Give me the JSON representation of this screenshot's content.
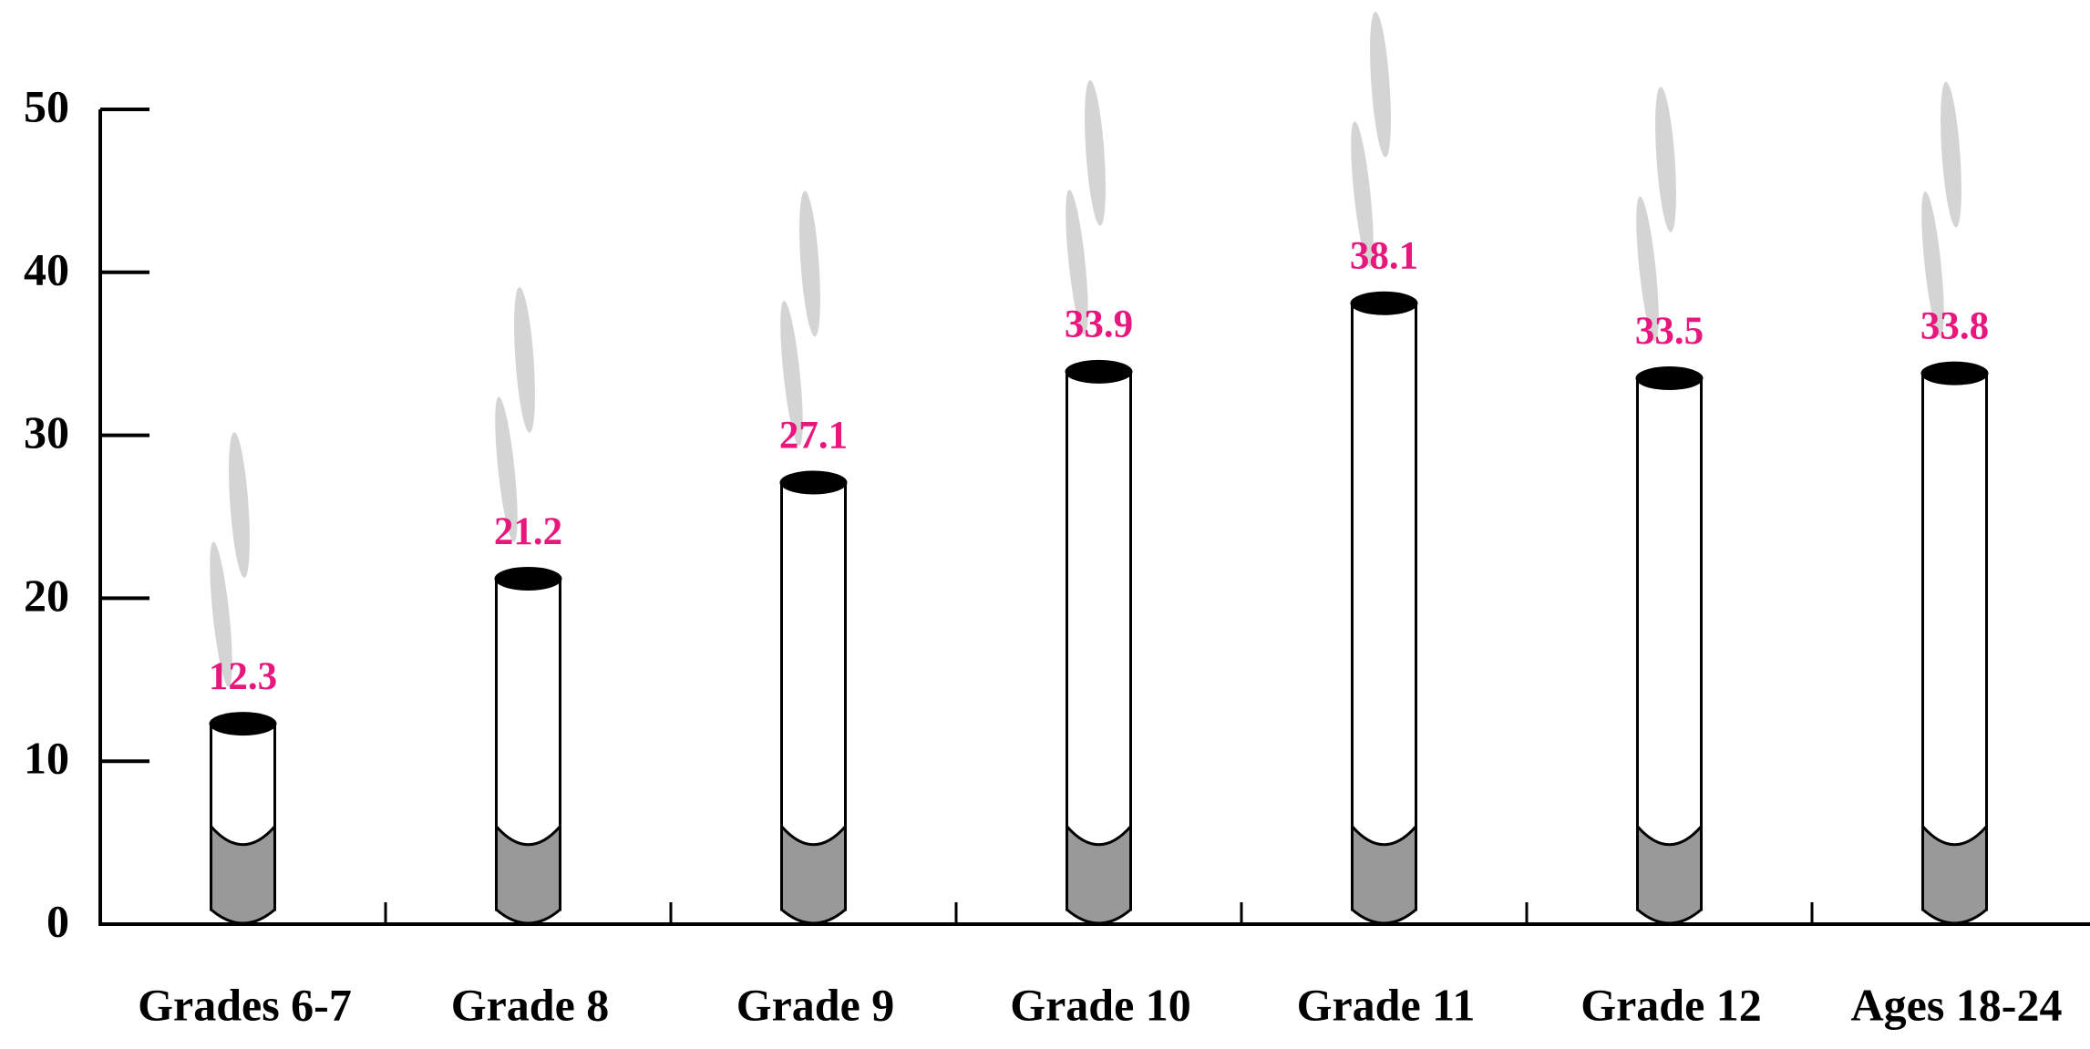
{
  "chart_data": {
    "type": "bar",
    "categories": [
      "Grades 6-7",
      "Grade 8",
      "Grade 9",
      "Grade 10",
      "Grade 11",
      "Grade 12",
      "Ages 18-24"
    ],
    "values": [
      12.3,
      21.2,
      27.1,
      33.9,
      38.1,
      33.5,
      33.8
    ],
    "color": "#ffffff",
    "filter_color": "#999999",
    "label_color": "#e8177d",
    "ylim": [
      0,
      50
    ],
    "yticks": [
      0,
      10,
      20,
      30,
      40,
      50
    ],
    "grid": false
  }
}
